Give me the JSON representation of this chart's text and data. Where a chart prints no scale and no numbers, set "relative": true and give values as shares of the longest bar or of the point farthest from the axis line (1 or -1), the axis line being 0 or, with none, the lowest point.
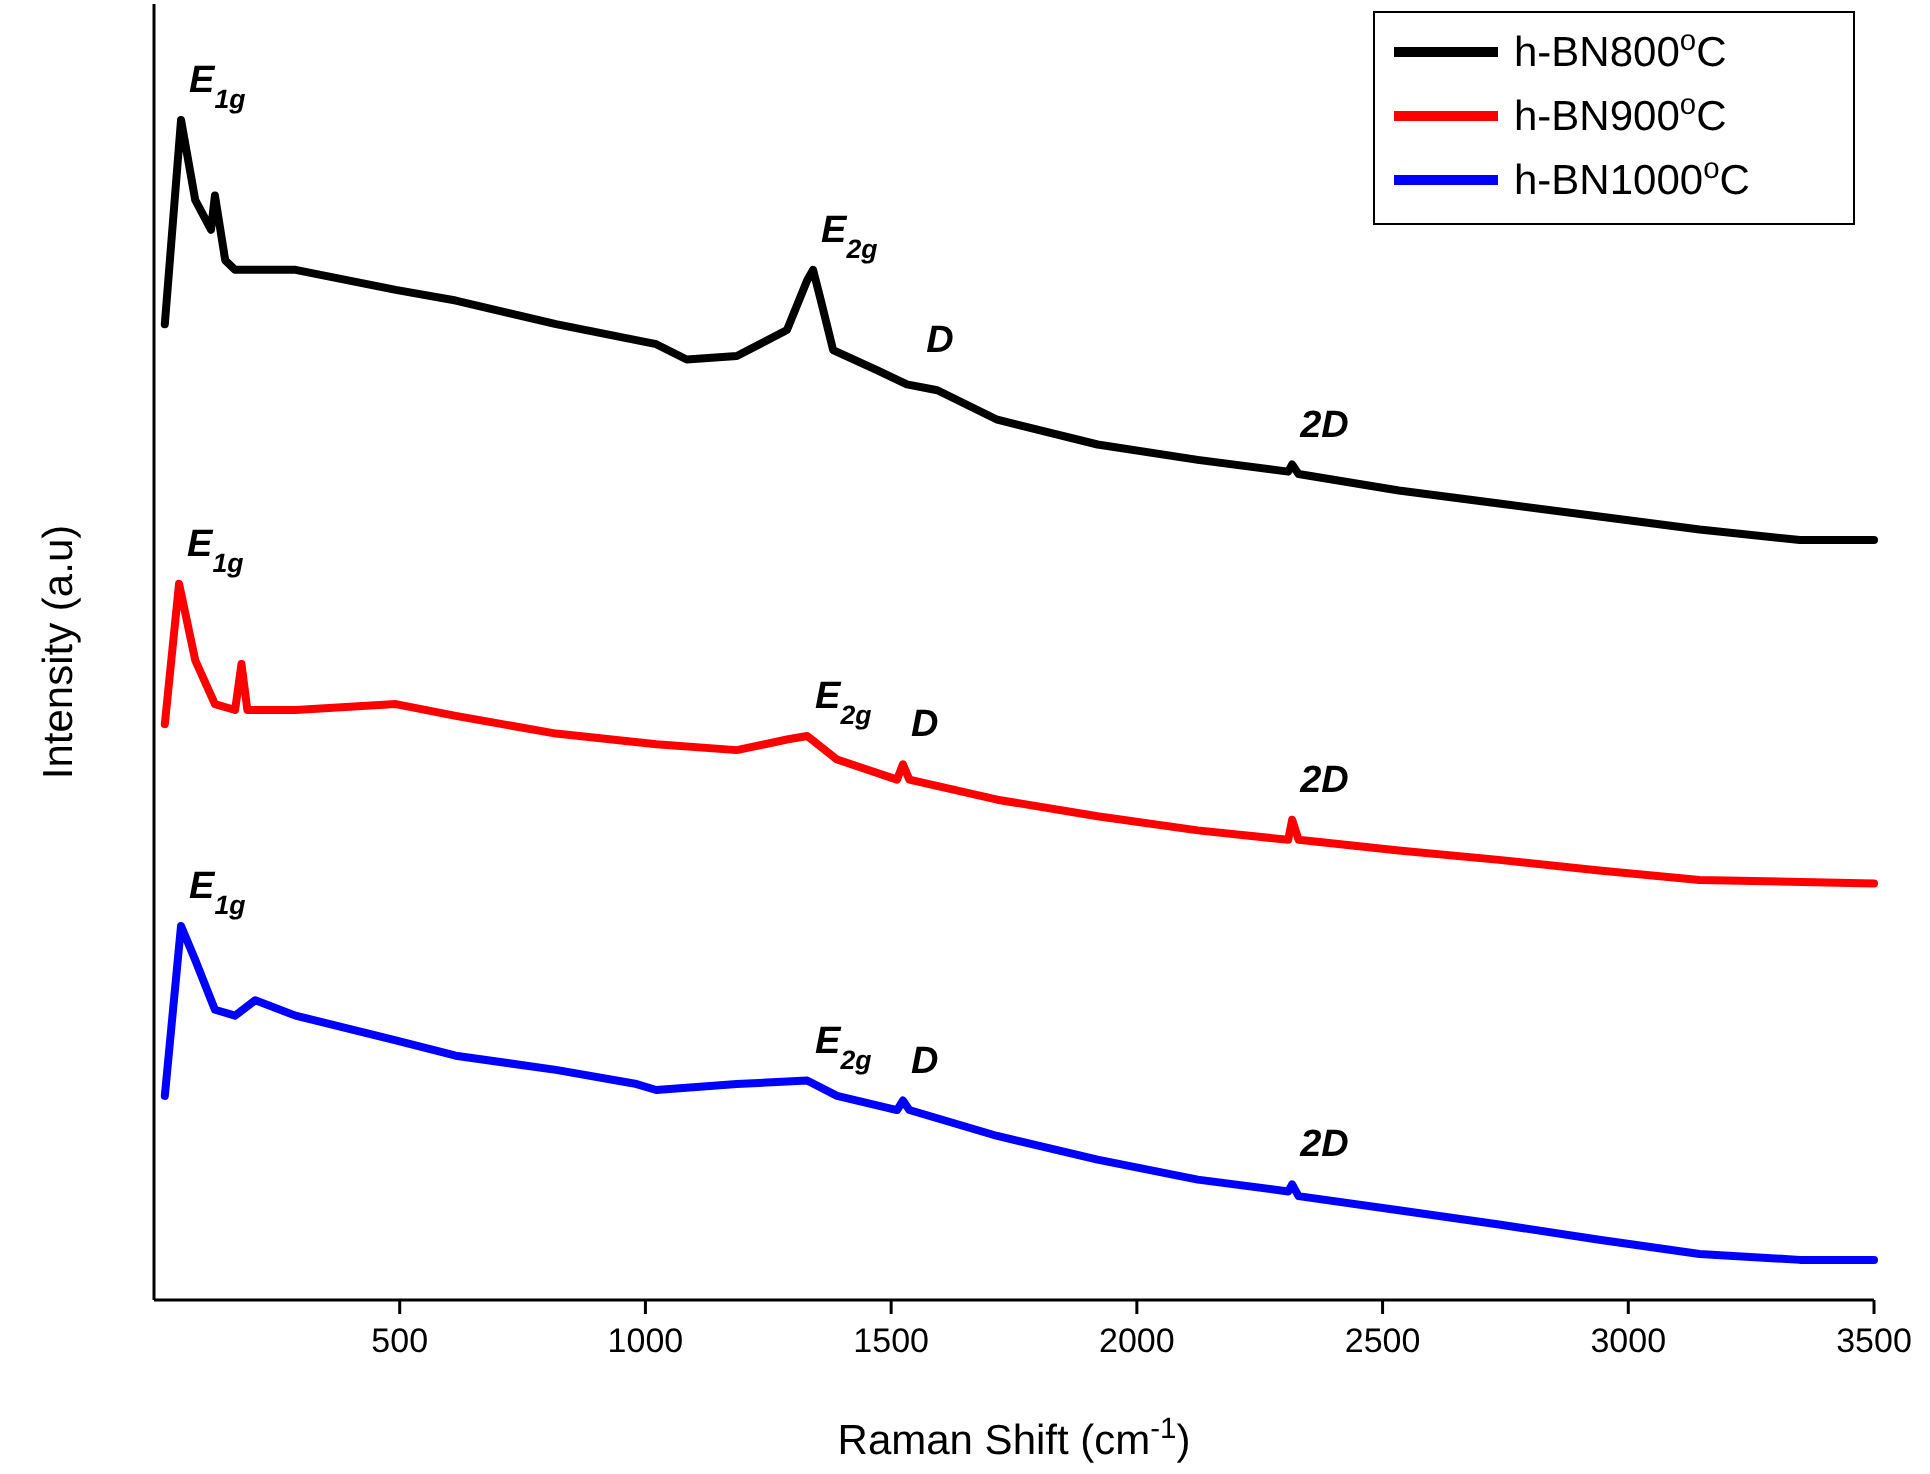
{
  "chart_data": {
    "type": "line",
    "relative": true,
    "xlabel": "Raman Shift (cm$^{-1}$)",
    "ylabel": "Intensity (a.u)",
    "xlim": [
      0,
      3500
    ],
    "xticks": [
      500,
      1000,
      1500,
      2000,
      2500,
      3000,
      3500
    ],
    "legend": "top right",
    "line_style": "solid",
    "marker": "none",
    "series": [
      {
        "name": "h-BN800$^{o}$C",
        "color": "#000000",
        "x": [
          22,
          55,
          84,
          116,
          124,
          145,
          165,
          288,
          492,
          614,
          818,
          1022,
          1084,
          1186,
          1288,
          1329,
          1341,
          1357,
          1382,
          1471,
          1532,
          1594,
          1716,
          1920,
          2124,
          2308,
          2316,
          2329,
          2533,
          2737,
          2941,
          3145,
          3349,
          3500
        ],
        "values": [
          0.827,
          1,
          0.932,
          0.907,
          0.936,
          0.881,
          0.873,
          0.873,
          0.856,
          0.847,
          0.827,
          0.81,
          0.797,
          0.8,
          0.822,
          0.864,
          0.873,
          0.847,
          0.805,
          0.788,
          0.776,
          0.771,
          0.746,
          0.725,
          0.712,
          0.702,
          0.708,
          0.7,
          0.686,
          0.675,
          0.664,
          0.653,
          0.644,
          0.644
        ]
      },
      {
        "name": "h-BN900$^{o}$C",
        "color": "#ff0000",
        "x": [
          22,
          51,
          84,
          124,
          165,
          178,
          190,
          288,
          492,
          614,
          818,
          1022,
          1186,
          1288,
          1329,
          1390,
          1512,
          1524,
          1537,
          1716,
          1920,
          2124,
          2308,
          2316,
          2329,
          2533,
          2737,
          2941,
          3145,
          3500
        ],
        "values": [
          0.488,
          0.607,
          0.542,
          0.505,
          0.5,
          0.539,
          0.5,
          0.5,
          0.505,
          0.495,
          0.48,
          0.471,
          0.466,
          0.475,
          0.478,
          0.458,
          0.441,
          0.454,
          0.441,
          0.424,
          0.41,
          0.398,
          0.39,
          0.407,
          0.39,
          0.381,
          0.373,
          0.364,
          0.356,
          0.353
        ]
      },
      {
        "name": "h-BN1000$^{o}$C",
        "color": "#0000ff",
        "x": [
          22,
          55,
          84,
          124,
          165,
          206,
          288,
          492,
          614,
          818,
          982,
          1022,
          1186,
          1329,
          1390,
          1512,
          1524,
          1537,
          1716,
          1920,
          2124,
          2308,
          2316,
          2329,
          2533,
          2737,
          2941,
          3145,
          3349,
          3500
        ],
        "values": [
          0.173,
          0.317,
          0.288,
          0.246,
          0.241,
          0.254,
          0.241,
          0.22,
          0.207,
          0.195,
          0.183,
          0.178,
          0.183,
          0.186,
          0.173,
          0.161,
          0.169,
          0.161,
          0.139,
          0.119,
          0.102,
          0.092,
          0.098,
          0.088,
          0.076,
          0.064,
          0.051,
          0.039,
          0.034,
          0.034
        ]
      }
    ],
    "annotations": [
      {
        "text": "E$_{1g}$",
        "x": 55,
        "y": 1
      },
      {
        "text": "E$_{2g}$",
        "x": 1341,
        "y": 0.873
      },
      {
        "text": "D",
        "x": 1555,
        "y": 0.78
      },
      {
        "text": "2D",
        "x": 2316,
        "y": 0.708
      },
      {
        "text": "E$_{1g}$",
        "x": 51,
        "y": 0.607
      },
      {
        "text": "E$_{2g}$",
        "x": 1329,
        "y": 0.478
      },
      {
        "text": "D",
        "x": 1524,
        "y": 0.454
      },
      {
        "text": "2D",
        "x": 2316,
        "y": 0.407
      },
      {
        "text": "E$_{1g}$",
        "x": 55,
        "y": 0.317
      },
      {
        "text": "E$_{2g}$",
        "x": 1329,
        "y": 0.186
      },
      {
        "text": "D",
        "x": 1524,
        "y": 0.169
      },
      {
        "text": "2D",
        "x": 2316,
        "y": 0.098
      }
    ]
  }
}
